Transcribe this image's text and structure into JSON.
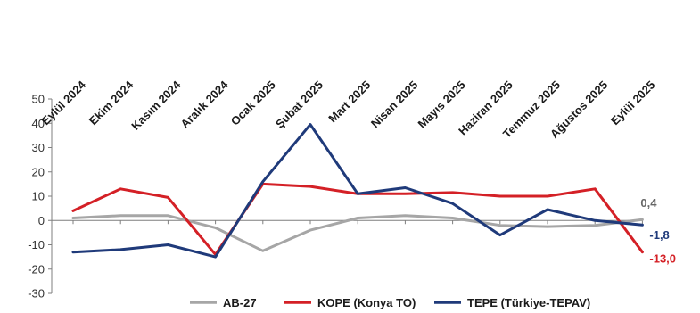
{
  "chart_data": {
    "type": "line",
    "categories": [
      "Eylül 2024",
      "Ekim 2024",
      "Kasım 2024",
      "Aralık 2024",
      "Ocak 2025",
      "Şubat 2025",
      "Mart 2025",
      "Nisan 2025",
      "Mayıs 2025",
      "Haziran 2025",
      "Temmuz 2025",
      "Ağustos 2025",
      "Eylül 2025"
    ],
    "ylim": [
      -30,
      50
    ],
    "yticks": [
      50,
      40,
      30,
      20,
      10,
      0,
      -10,
      -20,
      -30
    ],
    "ytick_labels": [
      "50",
      "40",
      "30",
      "20",
      "10",
      "0",
      "-10",
      "-20",
      "-30"
    ],
    "grid": false,
    "legend_position": "bottom",
    "series": [
      {
        "name": "AB-27",
        "color": "#a6a6a6",
        "values": [
          1,
          2,
          2,
          -3,
          -12.5,
          -4,
          1,
          2,
          1,
          -2,
          -2.5,
          -2,
          0.4
        ],
        "end_label": "0,4"
      },
      {
        "name": "KOPE (Konya TO)",
        "color": "#d42026",
        "values": [
          4,
          13,
          9.5,
          -14,
          15,
          14,
          11,
          11,
          11.5,
          10,
          10,
          13,
          -13.0
        ],
        "end_label": "-13,0"
      },
      {
        "name": "TEPE (Türkiye-TEPAV)",
        "color": "#1f3a7a",
        "values": [
          -13,
          -12,
          -10,
          -15,
          16,
          39.5,
          11,
          13.5,
          7,
          -6,
          4.5,
          0,
          -1.8
        ],
        "end_label": "-1,8"
      }
    ]
  }
}
